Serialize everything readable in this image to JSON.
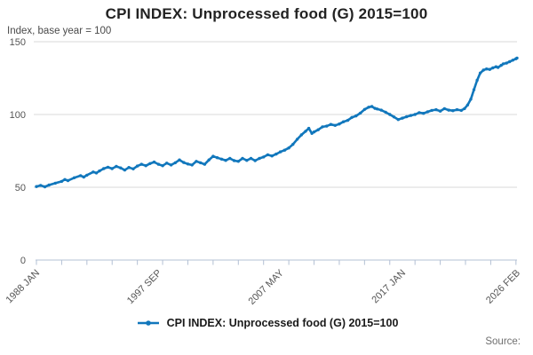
{
  "header": {
    "title": "CPI INDEX: Unprocessed food (G) 2015=100",
    "subtitle": "Index, base year = 100"
  },
  "legend": {
    "label": "CPI INDEX: Unprocessed food (G) 2015=100"
  },
  "source": {
    "label": "Source:"
  },
  "colors": {
    "line": "#1177bc",
    "grid": "#d9d9d9",
    "axis": "#b3c0d4",
    "tick_label": "#555555",
    "title": "#222222",
    "subtitle": "#4a4a4a",
    "legend_text": "#1a1a1a",
    "source_text": "#6f6f6f"
  },
  "chart_data": {
    "type": "line",
    "title": "CPI INDEX: Unprocessed food (G) 2015=100",
    "subtitle": "Index, base year = 100",
    "xlabel": "",
    "ylabel": "Index, base year = 100",
    "ylim": [
      0,
      150
    ],
    "yticks": [
      0,
      50,
      100,
      150
    ],
    "xlim": [
      1988.0,
      2026.083
    ],
    "grid": "horizontal",
    "legend_position": "bottom",
    "minor_tick_start_year": 1988,
    "minor_tick_end_year": 2026,
    "minor_tick_step_years": 2,
    "xtick_labels": [
      {
        "label": "1988 JAN",
        "x": 1988.0
      },
      {
        "label": "1997 SEP",
        "x": 1997.667
      },
      {
        "label": "2007 MAY",
        "x": 2007.333
      },
      {
        "label": "2017 JAN",
        "x": 2017.0
      },
      {
        "label": "2026 FEB",
        "x": 2026.083
      }
    ],
    "series": [
      {
        "name": "CPI INDEX: Unprocessed food (G) 2015=100",
        "x": [
          1988.0,
          1988.33,
          1988.67,
          1989.0,
          1989.5,
          1990.0,
          1990.25,
          1990.5,
          1991.0,
          1991.5,
          1991.75,
          1992.0,
          1992.5,
          1992.75,
          1993.0,
          1993.33,
          1993.67,
          1994.0,
          1994.33,
          1994.67,
          1995.0,
          1995.33,
          1995.67,
          1996.0,
          1996.33,
          1996.67,
          1997.0,
          1997.33,
          1997.67,
          1998.0,
          1998.33,
          1998.67,
          1999.0,
          1999.33,
          1999.67,
          2000.0,
          2000.33,
          2000.67,
          2001.0,
          2001.33,
          2001.67,
          2002.0,
          2002.33,
          2002.67,
          2003.0,
          2003.33,
          2003.67,
          2004.0,
          2004.33,
          2004.67,
          2005.0,
          2005.33,
          2005.67,
          2006.0,
          2006.33,
          2006.67,
          2007.0,
          2007.33,
          2007.67,
          2008.0,
          2008.33,
          2008.67,
          2009.0,
          2009.33,
          2009.58,
          2009.83,
          2010.0,
          2010.33,
          2010.67,
          2011.0,
          2011.33,
          2011.67,
          2012.0,
          2012.33,
          2012.67,
          2013.0,
          2013.33,
          2013.67,
          2014.0,
          2014.33,
          2014.58,
          2014.83,
          2015.0,
          2015.33,
          2015.67,
          2016.0,
          2016.33,
          2016.67,
          2017.0,
          2017.33,
          2017.67,
          2018.0,
          2018.33,
          2018.67,
          2019.0,
          2019.33,
          2019.67,
          2020.0,
          2020.33,
          2020.67,
          2021.0,
          2021.33,
          2021.67,
          2021.92,
          2022.17,
          2022.42,
          2022.67,
          2022.92,
          2023.17,
          2023.42,
          2023.67,
          2023.92,
          2024.17,
          2024.42,
          2024.58,
          2024.83,
          2025.0,
          2025.25,
          2025.5,
          2025.75,
          2026.0,
          2026.083
        ],
        "values": [
          50.5,
          51.3,
          50.3,
          51.5,
          52.8,
          54.0,
          55.3,
          54.6,
          56.5,
          58.0,
          57.0,
          58.3,
          60.5,
          59.8,
          61.2,
          62.8,
          63.8,
          62.8,
          64.3,
          63.3,
          61.8,
          63.6,
          62.6,
          64.6,
          65.8,
          64.8,
          66.3,
          67.3,
          65.8,
          64.8,
          66.6,
          65.3,
          66.8,
          68.8,
          67.0,
          66.0,
          65.3,
          67.8,
          66.8,
          65.8,
          68.8,
          71.3,
          70.3,
          69.3,
          68.5,
          69.8,
          68.3,
          67.8,
          69.8,
          68.5,
          69.8,
          68.3,
          69.8,
          70.8,
          72.3,
          71.5,
          72.8,
          74.3,
          75.5,
          77.0,
          79.5,
          83.0,
          86.0,
          88.5,
          90.5,
          87.0,
          88.0,
          89.5,
          91.5,
          92.0,
          93.2,
          92.5,
          93.5,
          95.0,
          96.0,
          98.0,
          99.0,
          101.0,
          103.5,
          105.0,
          105.5,
          104.2,
          103.8,
          103.0,
          101.5,
          100.0,
          98.3,
          96.5,
          97.5,
          98.5,
          99.3,
          100.0,
          101.3,
          100.8,
          101.8,
          102.8,
          103.3,
          102.3,
          104.0,
          103.0,
          102.6,
          103.3,
          102.8,
          104.0,
          106.5,
          110.5,
          117.0,
          123.5,
          128.5,
          130.5,
          131.3,
          131.0,
          132.0,
          132.8,
          132.3,
          133.8,
          134.8,
          135.3,
          136.3,
          137.3,
          138.3,
          138.8
        ]
      }
    ]
  }
}
